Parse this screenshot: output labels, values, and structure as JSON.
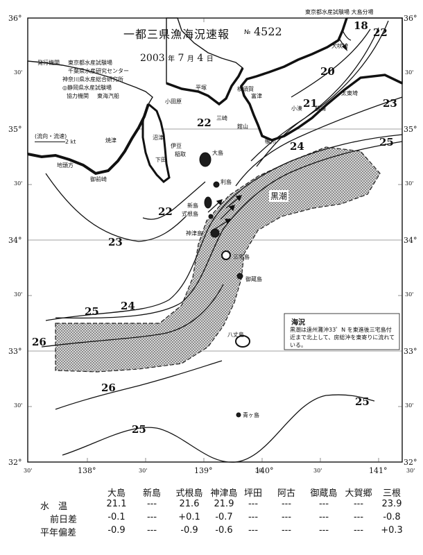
{
  "header": {
    "title": "一都三県漁海況速報",
    "issue_prefix": "№",
    "issue": "4522",
    "corner": "東京都水産試験場 大島分場",
    "date_year": "2003",
    "date_year_unit": "年",
    "date_month": "7",
    "date_month_unit": "月",
    "date_day": "4",
    "date_day_unit": "日"
  },
  "issuers": {
    "issue_label": "発行機関",
    "lines": [
      "東京都水産試験場",
      "千葉県水産研究センター",
      "神奈川県水産総合研究所",
      "◎静岡県水産試験場"
    ],
    "coop_label": "協力機関",
    "coop": "東海汽船"
  },
  "current_legend": {
    "label": "(流向・流速)",
    "unit": "2 kt"
  },
  "kuroshio_label": "黒潮",
  "isotherms": [
    "18",
    "22",
    "20",
    "21",
    "23",
    "22",
    "24",
    "25",
    "22",
    "23",
    "24",
    "25",
    "26",
    "26",
    "25",
    "25"
  ],
  "place_names": [
    "犬吠埼",
    "平塚",
    "横須賀",
    "富津",
    "小田原",
    "三崎",
    "館山",
    "太東埼",
    "勝浦",
    "小湊",
    "鴨川",
    "沼津",
    "伊豆",
    "下田",
    "焼津",
    "御前崎",
    "地頭方",
    "稲取",
    "大島",
    "利島",
    "新島",
    "式根島",
    "神津島",
    "三宅島",
    "御蔵島",
    "八丈島",
    "青ヶ島"
  ],
  "note": {
    "title": "海況",
    "text": "黒潮は遠州灘沖33゜N を東進後三宅島付近まで北上して、房総沖を東寄りに流れている。"
  },
  "axes": {
    "lat_labels": [
      "36°",
      "30'",
      "35°",
      "30'",
      "34°",
      "30'",
      "33°",
      "30'",
      "32°"
    ],
    "lon_labels": [
      "30'",
      "138°",
      "30'",
      "139°",
      "30'",
      "140°",
      "30'",
      "141°",
      "30'"
    ]
  },
  "table": {
    "stations": [
      "大島",
      "新島",
      "式根島",
      "神津島",
      "坪田",
      "阿古",
      "御蔵島",
      "大賀郷",
      "三根"
    ],
    "rows": [
      {
        "label": "水　温",
        "values": [
          "21.1",
          "---",
          "21.6",
          "21.9",
          "---",
          "---",
          "---",
          "---",
          "23.9"
        ]
      },
      {
        "label": "前日差",
        "values": [
          "-0.1",
          "---",
          "+0.1",
          "-0.7",
          "---",
          "---",
          "---",
          "---",
          "-0.8"
        ]
      },
      {
        "label": "平年偏差",
        "values": [
          "-0.9",
          "---",
          "-0.9",
          "-0.6",
          "---",
          "---",
          "---",
          "---",
          "+0.3"
        ]
      }
    ]
  },
  "colors": {
    "ink": "#111111",
    "land": "#1c1c1c",
    "kuroshio_fill": "#b8b8b8"
  }
}
